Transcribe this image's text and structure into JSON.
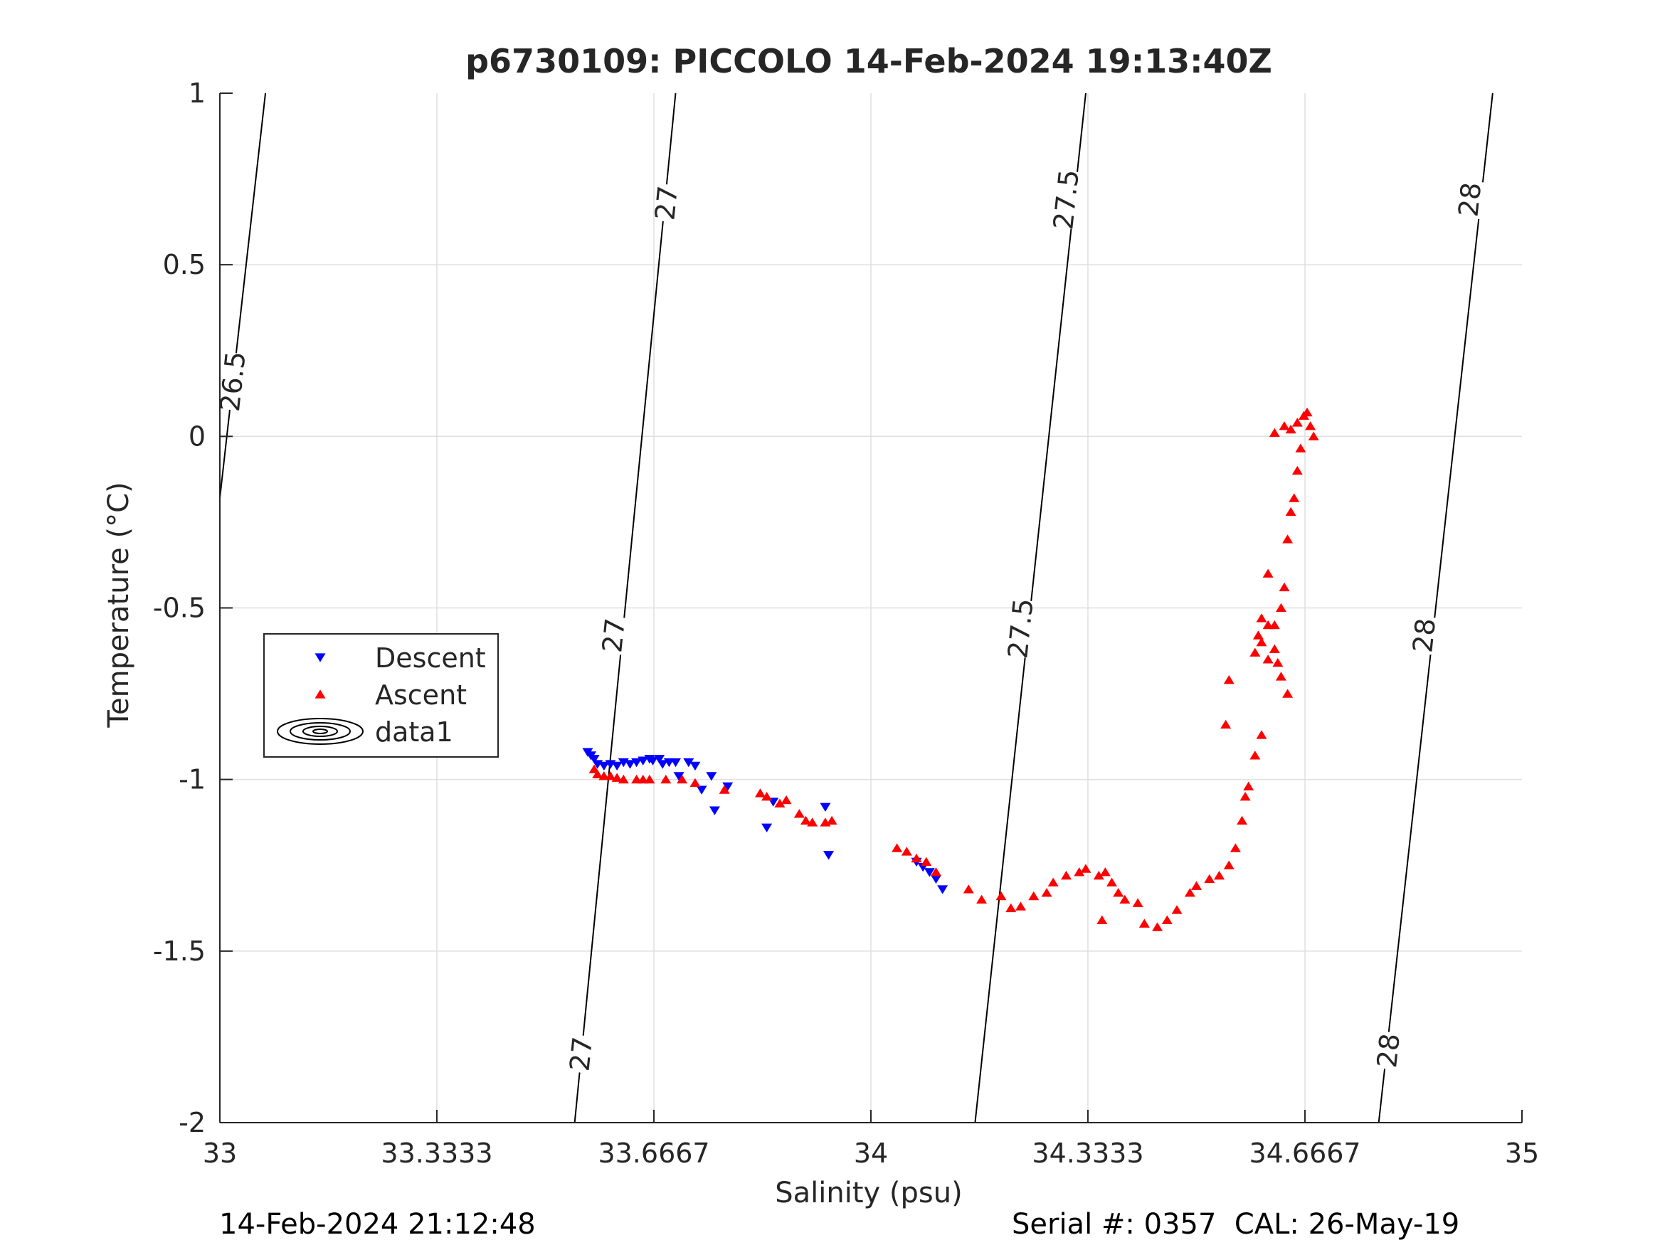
{
  "chart_data": {
    "type": "scatter",
    "title": "p6730109: PICCOLO 14-Feb-2024 19:13:40Z",
    "xlabel": "Salinity (psu)",
    "ylabel": "Temperature (°C)",
    "xlim": [
      33,
      35
    ],
    "ylim": [
      -2,
      1
    ],
    "xticks": [
      33,
      33.3333,
      33.6667,
      34,
      34.3333,
      34.6667,
      35
    ],
    "xtick_labels": [
      "33",
      "33.3333",
      "33.6667",
      "34",
      "34.3333",
      "34.6667",
      "35"
    ],
    "yticks": [
      -2,
      -1.5,
      -1,
      -0.5,
      0,
      0.5,
      1
    ],
    "ytick_labels": [
      "-2",
      "-1.5",
      "-1",
      "-0.5",
      "0",
      "0.5",
      "1"
    ],
    "grid": true,
    "legend": {
      "placement": "left-middle",
      "entries": [
        {
          "label": "Descent",
          "marker": "triangle-down",
          "color": "#0000ff"
        },
        {
          "label": "Ascent",
          "marker": "triangle-up",
          "color": "#ff0000"
        },
        {
          "label": "data1",
          "marker": "contour",
          "color": "#000000"
        }
      ]
    },
    "series": [
      {
        "name": "Descent",
        "marker": "triangle-down",
        "color": "#0000ff",
        "points": [
          [
            33.565,
            -0.92
          ],
          [
            33.57,
            -0.93
          ],
          [
            33.575,
            -0.94
          ],
          [
            33.58,
            -0.955
          ],
          [
            33.59,
            -0.96
          ],
          [
            33.6,
            -0.955
          ],
          [
            33.61,
            -0.96
          ],
          [
            33.62,
            -0.95
          ],
          [
            33.63,
            -0.955
          ],
          [
            33.64,
            -0.95
          ],
          [
            33.65,
            -0.945
          ],
          [
            33.66,
            -0.94
          ],
          [
            33.665,
            -0.945
          ],
          [
            33.675,
            -0.94
          ],
          [
            33.68,
            -0.955
          ],
          [
            33.69,
            -0.95
          ],
          [
            33.7,
            -0.95
          ],
          [
            33.705,
            -0.99
          ],
          [
            33.72,
            -0.95
          ],
          [
            33.73,
            -0.96
          ],
          [
            33.74,
            -1.03
          ],
          [
            33.755,
            -0.99
          ],
          [
            33.78,
            -1.02
          ],
          [
            33.76,
            -1.09
          ],
          [
            33.84,
            -1.14
          ],
          [
            33.85,
            -1.065
          ],
          [
            33.93,
            -1.08
          ],
          [
            33.935,
            -1.22
          ],
          [
            34.07,
            -1.24
          ],
          [
            34.08,
            -1.255
          ],
          [
            34.09,
            -1.27
          ],
          [
            34.1,
            -1.29
          ],
          [
            34.11,
            -1.32
          ]
        ]
      },
      {
        "name": "Ascent",
        "marker": "triangle-up",
        "color": "#ff0000",
        "points": [
          [
            33.575,
            -0.97
          ],
          [
            33.58,
            -0.985
          ],
          [
            33.59,
            -0.99
          ],
          [
            33.6,
            -0.99
          ],
          [
            33.61,
            -0.995
          ],
          [
            33.62,
            -1.0
          ],
          [
            33.64,
            -1.0
          ],
          [
            33.65,
            -1.0
          ],
          [
            33.66,
            -1.0
          ],
          [
            33.685,
            -1.0
          ],
          [
            33.71,
            -1.0
          ],
          [
            33.73,
            -1.01
          ],
          [
            33.775,
            -1.03
          ],
          [
            33.83,
            -1.04
          ],
          [
            33.84,
            -1.05
          ],
          [
            33.86,
            -1.07
          ],
          [
            33.87,
            -1.06
          ],
          [
            33.89,
            -1.1
          ],
          [
            33.9,
            -1.12
          ],
          [
            33.91,
            -1.125
          ],
          [
            33.93,
            -1.125
          ],
          [
            33.94,
            -1.12
          ],
          [
            34.04,
            -1.2
          ],
          [
            34.055,
            -1.21
          ],
          [
            34.07,
            -1.23
          ],
          [
            34.085,
            -1.24
          ],
          [
            34.1,
            -1.27
          ],
          [
            34.15,
            -1.32
          ],
          [
            34.17,
            -1.35
          ],
          [
            34.2,
            -1.34
          ],
          [
            34.215,
            -1.375
          ],
          [
            34.23,
            -1.37
          ],
          [
            34.25,
            -1.34
          ],
          [
            34.27,
            -1.33
          ],
          [
            34.28,
            -1.3
          ],
          [
            34.3,
            -1.28
          ],
          [
            34.32,
            -1.27
          ],
          [
            34.33,
            -1.26
          ],
          [
            34.35,
            -1.28
          ],
          [
            34.36,
            -1.27
          ],
          [
            34.37,
            -1.3
          ],
          [
            34.38,
            -1.33
          ],
          [
            34.39,
            -1.35
          ],
          [
            34.41,
            -1.36
          ],
          [
            34.42,
            -1.42
          ],
          [
            34.44,
            -1.43
          ],
          [
            34.455,
            -1.41
          ],
          [
            34.47,
            -1.38
          ],
          [
            34.49,
            -1.33
          ],
          [
            34.5,
            -1.31
          ],
          [
            34.52,
            -1.29
          ],
          [
            34.535,
            -1.28
          ],
          [
            34.55,
            -1.25
          ],
          [
            34.56,
            -1.2
          ],
          [
            34.57,
            -1.12
          ],
          [
            34.575,
            -1.05
          ],
          [
            34.58,
            -1.02
          ],
          [
            34.59,
            -0.93
          ],
          [
            34.6,
            -0.87
          ],
          [
            34.545,
            -0.84
          ],
          [
            34.55,
            -0.71
          ],
          [
            34.59,
            -0.63
          ],
          [
            34.595,
            -0.58
          ],
          [
            34.6,
            -0.53
          ],
          [
            34.61,
            -0.4
          ],
          [
            34.61,
            -0.65
          ],
          [
            34.6,
            -0.6
          ],
          [
            34.62,
            -0.55
          ],
          [
            34.63,
            -0.7
          ],
          [
            34.64,
            -0.75
          ],
          [
            34.63,
            -0.5
          ],
          [
            34.635,
            -0.44
          ],
          [
            34.64,
            -0.3
          ],
          [
            34.645,
            -0.22
          ],
          [
            34.65,
            -0.18
          ],
          [
            34.655,
            -0.1
          ],
          [
            34.66,
            -0.035
          ],
          [
            34.62,
            0.01
          ],
          [
            34.635,
            0.03
          ],
          [
            34.645,
            0.02
          ],
          [
            34.655,
            0.04
          ],
          [
            34.665,
            0.06
          ],
          [
            34.67,
            0.07
          ],
          [
            34.675,
            0.03
          ],
          [
            34.68,
            0.0
          ],
          [
            34.355,
            -1.41
          ],
          [
            34.62,
            -0.62
          ],
          [
            34.625,
            -0.66
          ],
          [
            34.61,
            -0.55
          ]
        ]
      }
    ],
    "contours": [
      {
        "label": "26.5",
        "points": [
          [
            33.0,
            -0.18
          ],
          [
            33.07,
            1.0
          ]
        ]
      },
      {
        "label": "27",
        "points": [
          [
            33.545,
            -2.0
          ],
          [
            33.7,
            1.0
          ]
        ]
      },
      {
        "label": "27.5",
        "points": [
          [
            34.16,
            -2.0
          ],
          [
            34.33,
            1.0
          ]
        ]
      },
      {
        "label": "28",
        "points": [
          [
            34.78,
            -2.0
          ],
          [
            34.955,
            1.0
          ]
        ]
      }
    ],
    "contour_labels": [
      {
        "text": "26.5",
        "x": 33.02,
        "y": 0.16
      },
      {
        "text": "27",
        "x": 33.686,
        "y": 0.68
      },
      {
        "text": "27",
        "x": 33.605,
        "y": -0.58
      },
      {
        "text": "27",
        "x": 33.555,
        "y": -1.8
      },
      {
        "text": "27.5",
        "x": 34.3,
        "y": 0.69
      },
      {
        "text": "27.5",
        "x": 34.23,
        "y": -0.56
      },
      {
        "text": "28",
        "x": 34.92,
        "y": 0.69
      },
      {
        "text": "28",
        "x": 34.85,
        "y": -0.58
      },
      {
        "text": "28",
        "x": 34.795,
        "y": -1.79
      }
    ]
  },
  "footer": {
    "timestamp": "14-Feb-2024 21:12:48",
    "serial": "Serial #: 0357  CAL: 26-May-19"
  }
}
